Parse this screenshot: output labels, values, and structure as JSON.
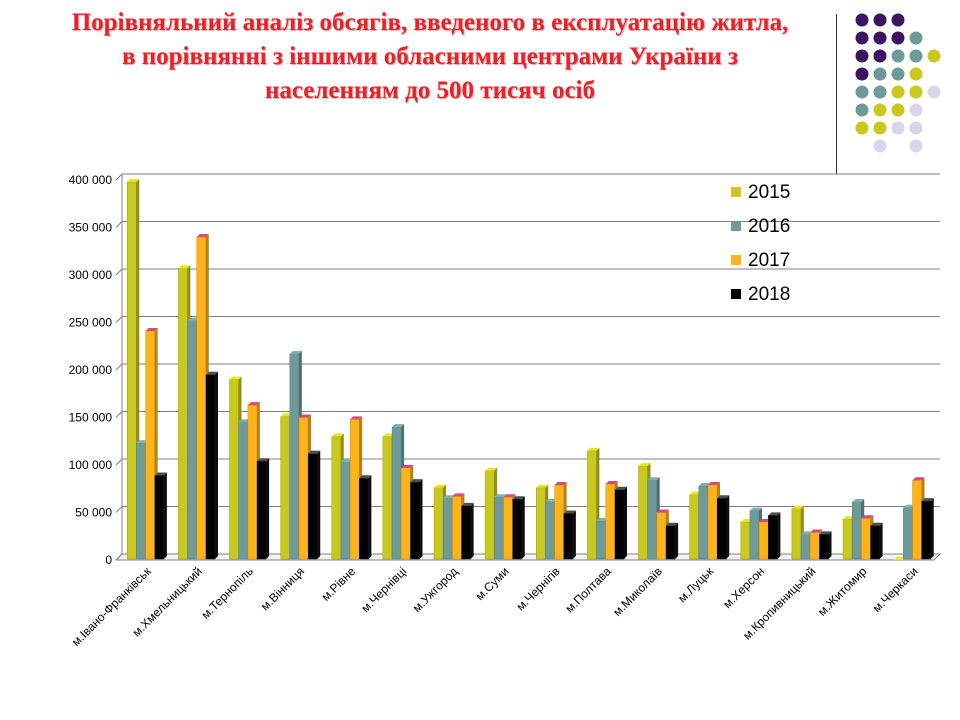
{
  "title": {
    "line1": "Порівняльний аналіз обсягів, введеного в експлуатацію житла,",
    "line2": "в порівнянні з іншими обласними центрами України з",
    "line3": "населенням до 500 тисяч осіб"
  },
  "decor": {
    "dot_colors": [
      "#3c1361",
      "#6f9a9a",
      "#c8c81e",
      "#d8d6e8"
    ]
  },
  "chart_data": {
    "type": "bar",
    "categories": [
      "м.Івано-Франківськ",
      "м.Хмельницький",
      "м.Тернопіль",
      "м.Вінниця",
      "м.Рівне",
      "м.Чернівці",
      "м.Ужгород",
      "м.Суми",
      "м.Чернігів",
      "м.Полтава",
      "м.Миколаїв",
      "м.Луцьк",
      "м.Херсон",
      "м.Кропивницький",
      "м.Житомир",
      "м.Черкаси"
    ],
    "series": [
      {
        "name": "2015",
        "color": "#c8c81e",
        "values": [
          398000,
          307000,
          190000,
          151000,
          130000,
          130000,
          76000,
          94000,
          76000,
          115000,
          99000,
          69000,
          40000,
          54000,
          43000,
          0
        ]
      },
      {
        "name": "2016",
        "color": "#6f9a9a",
        "values": [
          123000,
          252000,
          145000,
          217000,
          103000,
          140000,
          65000,
          66000,
          61000,
          41000,
          84000,
          78000,
          52000,
          27000,
          61000,
          55000
        ]
      },
      {
        "name": "2017",
        "color": "#ffb31a",
        "values": [
          241000,
          340000,
          163000,
          150000,
          148000,
          97000,
          67000,
          66000,
          79000,
          80000,
          50000,
          79000,
          40000,
          29000,
          44000,
          84000
        ]
      },
      {
        "name": "2018",
        "color": "#000000",
        "values": [
          89000,
          195000,
          104000,
          112000,
          86000,
          82000,
          57000,
          64000,
          49000,
          74000,
          36000,
          65000,
          47000,
          27000,
          36000,
          62000
        ]
      }
    ],
    "ylim": [
      0,
      400000
    ],
    "yticks": [
      0,
      50000,
      100000,
      150000,
      200000,
      250000,
      300000,
      350000,
      400000
    ],
    "ytick_labels": [
      "0",
      "50 000",
      "100 000",
      "150 000",
      "200 000",
      "250 000",
      "300 000",
      "350 000",
      "400 000"
    ],
    "grid": true,
    "legend_position": "top-right"
  }
}
